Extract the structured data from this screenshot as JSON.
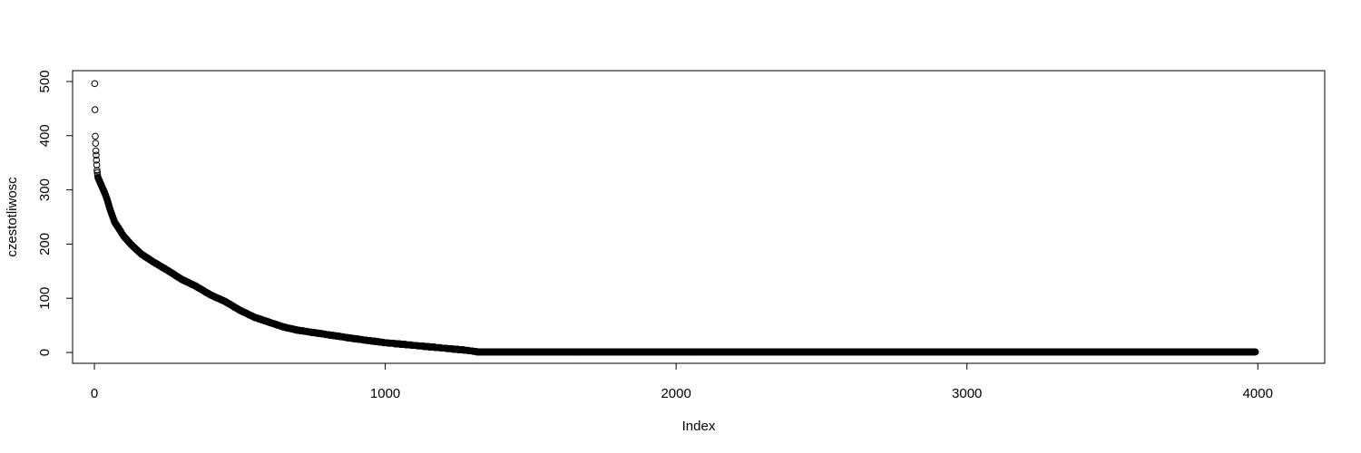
{
  "chart_data": {
    "type": "scatter",
    "title": "",
    "xlabel": "Index",
    "ylabel": "czestotliwosc",
    "xlim": [
      -75,
      4230
    ],
    "ylim": [
      -20,
      520
    ],
    "x_ticks": [
      0,
      1000,
      2000,
      3000,
      4000
    ],
    "y_ticks": [
      0,
      100,
      200,
      300,
      400,
      500
    ],
    "grid": false,
    "legend": "none",
    "point_style": "open-circle",
    "point_color": "#000000",
    "n_points": 3992,
    "anchors": [
      [
        1,
        496
      ],
      [
        3,
        399
      ],
      [
        5,
        372
      ],
      [
        7,
        355
      ],
      [
        9,
        336
      ],
      [
        12,
        323
      ],
      [
        18,
        316
      ],
      [
        25,
        307
      ],
      [
        35,
        295
      ],
      [
        45,
        280
      ],
      [
        55,
        262
      ],
      [
        70,
        240
      ],
      [
        85,
        228
      ],
      [
        100,
        215
      ],
      [
        125,
        200
      ],
      [
        160,
        182
      ],
      [
        200,
        168
      ],
      [
        250,
        152
      ],
      [
        300,
        135
      ],
      [
        350,
        122
      ],
      [
        400,
        106
      ],
      [
        450,
        94
      ],
      [
        500,
        78
      ],
      [
        550,
        65
      ],
      [
        600,
        56
      ],
      [
        650,
        47
      ],
      [
        700,
        41
      ],
      [
        800,
        33
      ],
      [
        900,
        25
      ],
      [
        1000,
        18
      ],
      [
        1100,
        13
      ],
      [
        1200,
        8
      ],
      [
        1280,
        4
      ],
      [
        1320,
        1
      ],
      [
        3992,
        1
      ]
    ]
  }
}
